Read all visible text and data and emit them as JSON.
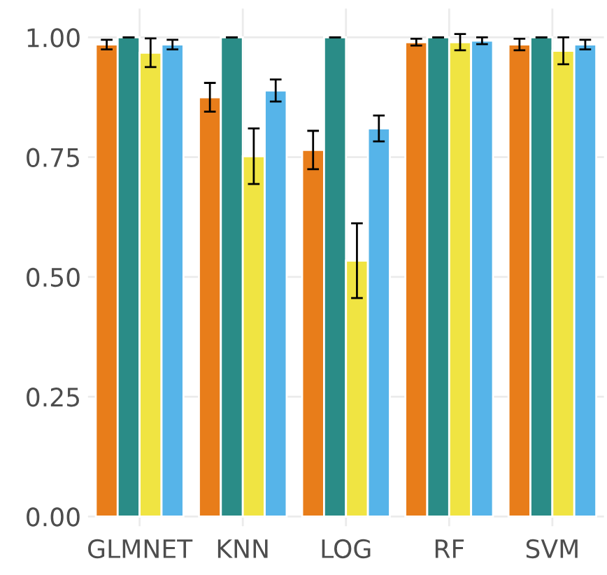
{
  "chart_data": {
    "type": "bar",
    "categories": [
      "GLMNET",
      "KNN",
      "LOG",
      "RF",
      "SVM"
    ],
    "series": [
      {
        "color": "#e87d1a",
        "values": [
          0.985,
          0.875,
          0.765,
          0.99,
          0.985
        ],
        "errors": [
          0.01,
          0.03,
          0.04,
          0.007,
          0.012
        ]
      },
      {
        "color": "#2a8c87",
        "values": [
          1.0,
          1.0,
          1.0,
          1.0,
          1.0
        ],
        "errors": [
          0.0,
          0.0,
          0.0,
          0.0,
          0.0
        ]
      },
      {
        "color": "#f0e442",
        "values": [
          0.968,
          0.752,
          0.534,
          0.99,
          0.972
        ],
        "errors": [
          0.03,
          0.058,
          0.078,
          0.017,
          0.028
        ]
      },
      {
        "color": "#56b4e9",
        "values": [
          0.985,
          0.889,
          0.81,
          0.993,
          0.985
        ],
        "errors": [
          0.01,
          0.023,
          0.027,
          0.007,
          0.01
        ]
      }
    ],
    "ylim": [
      -0.02,
      1.06
    ],
    "yticks": [
      {
        "value": 0,
        "label": "0.00"
      },
      {
        "value": 0.25,
        "label": "0.25"
      },
      {
        "value": 0.5,
        "label": "0.50"
      },
      {
        "value": 0.75,
        "label": "0.75"
      },
      {
        "value": 1.0,
        "label": "1.00"
      }
    ],
    "grid": true
  }
}
